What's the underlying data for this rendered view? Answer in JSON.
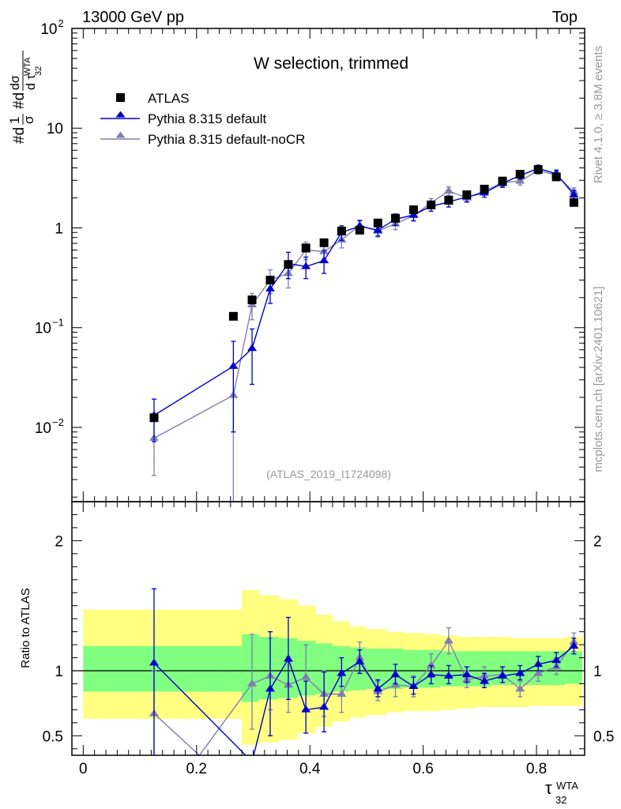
{
  "header": {
    "left": "13000 GeV pp",
    "right": "Top"
  },
  "side_labels": {
    "rivet": "Rivet 4.1.0, ≥ 3.8M events",
    "mcplots": "mcplots.cern.ch [arXiv:2401.10621]"
  },
  "colors": {
    "data": "#000000",
    "default": "#0000cc",
    "noCR": "#7f7fb2",
    "band_outer": "#ffff80",
    "band_inner": "#80ff80"
  },
  "chart_data": [
    {
      "type": "scatter",
      "panel": "main",
      "title": "W selection, trimmed",
      "analysis_tag": "(ATLAS_2019_I1724098)",
      "ylabel": "#d1/σ #d dσ/d τ_32^WTA",
      "ylabel_parts": {
        "top": "#d",
        "one": "1",
        "sigma": "σ",
        "num": "#d",
        "dsig": "dσ",
        "dtau": "d τ",
        "sup": "WTA",
        "sub": "32"
      },
      "yscale": "log",
      "ylim": [
        0.0018,
        100
      ],
      "xlim": [
        -0.02,
        0.885
      ],
      "yticks": [
        {
          "v": 0.01,
          "base": "10",
          "exp": "−2"
        },
        {
          "v": 0.1,
          "base": "10",
          "exp": "−1"
        },
        {
          "v": 1,
          "base": "1",
          "exp": ""
        },
        {
          "v": 10,
          "base": "10",
          "exp": ""
        },
        {
          "v": 100,
          "base": "10",
          "exp": "2"
        }
      ],
      "legend_position": "top-left",
      "series": [
        {
          "name": "ATLAS",
          "marker": "square",
          "color": "#000000",
          "x": [
            0.125,
            0.265,
            0.298,
            0.33,
            0.362,
            0.393,
            0.425,
            0.456,
            0.488,
            0.52,
            0.551,
            0.583,
            0.614,
            0.645,
            0.677,
            0.708,
            0.74,
            0.771,
            0.803,
            0.835,
            0.866
          ],
          "y": [
            0.0125,
            0.13,
            0.19,
            0.3,
            0.43,
            0.63,
            0.71,
            0.93,
            0.95,
            1.12,
            1.25,
            1.52,
            1.7,
            1.9,
            2.15,
            2.45,
            2.95,
            3.45,
            3.85,
            3.25,
            1.8
          ]
        },
        {
          "name": "Pythia 8.315 default",
          "marker": "triangle",
          "color": "#0000cc",
          "x": [
            0.125,
            0.265,
            0.298,
            0.33,
            0.362,
            0.393,
            0.425,
            0.456,
            0.488,
            0.52,
            0.551,
            0.583,
            0.614,
            0.645,
            0.677,
            0.708,
            0.74,
            0.771,
            0.803,
            0.835,
            0.866
          ],
          "y": [
            0.0132,
            0.041,
            0.062,
            0.245,
            0.44,
            0.41,
            0.47,
            0.9,
            1.04,
            0.95,
            1.22,
            1.35,
            1.65,
            1.82,
            2.05,
            2.25,
            2.8,
            3.35,
            3.95,
            3.5,
            2.15
          ],
          "err": [
            0.006,
            0.032,
            0.035,
            0.07,
            0.13,
            0.1,
            0.12,
            0.15,
            0.14,
            0.12,
            0.16,
            0.17,
            0.18,
            0.2,
            0.22,
            0.22,
            0.25,
            0.28,
            0.3,
            0.3,
            0.22
          ]
        },
        {
          "name": "Pythia 8.315 default-noCR",
          "marker": "triangle",
          "color": "#7f7fb2",
          "x": [
            0.125,
            0.265,
            0.298,
            0.33,
            0.362,
            0.393,
            0.425,
            0.456,
            0.488,
            0.52,
            0.551,
            0.583,
            0.614,
            0.645,
            0.677,
            0.708,
            0.74,
            0.771,
            0.803,
            0.835,
            0.866
          ],
          "y": [
            0.0078,
            0.021,
            0.17,
            0.3,
            0.35,
            0.6,
            0.58,
            0.76,
            1.06,
            0.93,
            1.1,
            1.33,
            1.78,
            2.35,
            2.0,
            2.35,
            2.85,
            2.95,
            3.75,
            3.4,
            2.3
          ],
          "err": [
            0.0045,
            0.0195,
            0.05,
            0.08,
            0.1,
            0.12,
            0.12,
            0.13,
            0.14,
            0.12,
            0.14,
            0.16,
            0.19,
            0.23,
            0.2,
            0.22,
            0.25,
            0.26,
            0.3,
            0.3,
            0.22
          ]
        }
      ]
    },
    {
      "type": "scatter",
      "panel": "ratio",
      "ylabel": "Ratio to ATLAS",
      "xlabel_base": "τ",
      "xlabel_sup": "WTA",
      "xlabel_sub": "32",
      "ylim": [
        0.35,
        2.3
      ],
      "xlim": [
        -0.02,
        0.885
      ],
      "xticks": [
        {
          "v": 0,
          "label": "0"
        },
        {
          "v": 0.2,
          "label": "0.2"
        },
        {
          "v": 0.4,
          "label": "0.4"
        },
        {
          "v": 0.6,
          "label": "0.6"
        },
        {
          "v": 0.8,
          "label": "0.8"
        }
      ],
      "yticks": [
        {
          "v": 0.5,
          "label": "0.5"
        },
        {
          "v": 1,
          "label": "1"
        },
        {
          "v": 2,
          "label": "2"
        }
      ],
      "reference_line": 1,
      "bands": {
        "edges": [
          0.0,
          0.25,
          0.28,
          0.31,
          0.345,
          0.378,
          0.41,
          0.44,
          0.47,
          0.5,
          0.535,
          0.565,
          0.6,
          0.63,
          0.66,
          0.69,
          0.72,
          0.755,
          0.787,
          0.82,
          0.85,
          0.88
        ],
        "outer_lo": [
          0.63,
          0.63,
          0.43,
          0.45,
          0.47,
          0.52,
          0.57,
          0.61,
          0.64,
          0.66,
          0.68,
          0.69,
          0.69,
          0.7,
          0.71,
          0.72,
          0.72,
          0.72,
          0.73,
          0.73,
          0.73
        ],
        "outer_hi": [
          1.47,
          1.47,
          1.62,
          1.58,
          1.55,
          1.5,
          1.43,
          1.38,
          1.34,
          1.32,
          1.3,
          1.29,
          1.28,
          1.27,
          1.26,
          1.26,
          1.26,
          1.25,
          1.25,
          1.25,
          1.26
        ],
        "inner_lo": [
          0.84,
          0.84,
          0.76,
          0.78,
          0.79,
          0.81,
          0.82,
          0.84,
          0.85,
          0.86,
          0.86,
          0.87,
          0.87,
          0.88,
          0.88,
          0.88,
          0.89,
          0.89,
          0.89,
          0.89,
          0.9
        ],
        "inner_hi": [
          1.19,
          1.19,
          1.28,
          1.26,
          1.25,
          1.23,
          1.21,
          1.19,
          1.18,
          1.17,
          1.17,
          1.16,
          1.16,
          1.15,
          1.15,
          1.15,
          1.15,
          1.15,
          1.15,
          1.15,
          1.15
        ]
      },
      "series": [
        {
          "name": "Pythia 8.315 default",
          "marker": "triangle",
          "color": "#0000cc",
          "x": [
            0.125,
            0.298,
            0.33,
            0.362,
            0.393,
            0.425,
            0.456,
            0.488,
            0.52,
            0.551,
            0.583,
            0.614,
            0.645,
            0.677,
            0.708,
            0.74,
            0.771,
            0.803,
            0.835,
            0.866
          ],
          "y": [
            1.06,
            0.3,
            0.86,
            1.09,
            0.7,
            0.72,
            0.98,
            1.07,
            0.86,
            0.97,
            0.88,
            0.97,
            0.96,
            0.97,
            0.92,
            0.96,
            0.98,
            1.05,
            1.08,
            1.19
          ],
          "lo": [
            0.3,
            0.3,
            0.5,
            0.78,
            0.52,
            0.53,
            0.88,
            0.98,
            0.8,
            0.9,
            0.82,
            0.9,
            0.9,
            0.91,
            0.87,
            0.91,
            0.93,
            1.0,
            1.03,
            1.13
          ],
          "hi": [
            1.63,
            0.3,
            1.3,
            1.41,
            0.92,
            0.99,
            1.1,
            1.16,
            0.93,
            1.05,
            0.95,
            1.04,
            1.04,
            1.03,
            0.98,
            1.03,
            1.04,
            1.11,
            1.14,
            1.25
          ]
        },
        {
          "name": "Pythia 8.315 default-noCR",
          "marker": "triangle",
          "color": "#7f7fb2",
          "x": [
            0.125,
            0.205,
            0.298,
            0.33,
            0.362,
            0.393,
            0.425,
            0.456,
            0.488,
            0.52,
            0.551,
            0.583,
            0.614,
            0.645,
            0.677,
            0.708,
            0.74,
            0.771,
            0.803,
            0.835,
            0.866
          ],
          "y": [
            0.67,
            0.35,
            0.9,
            0.96,
            0.89,
            0.95,
            0.82,
            0.82,
            1.1,
            0.84,
            0.89,
            0.88,
            1.04,
            1.23,
            0.93,
            0.96,
            0.97,
            0.86,
            0.98,
            1.03,
            1.22
          ],
          "lo": [
            0.35,
            0.35,
            0.55,
            0.7,
            0.68,
            0.7,
            0.65,
            0.68,
            0.98,
            0.77,
            0.8,
            0.8,
            0.95,
            1.13,
            0.87,
            0.9,
            0.91,
            0.8,
            0.92,
            0.97,
            1.15
          ],
          "hi": [
            1.0,
            0.35,
            1.28,
            1.25,
            1.11,
            1.2,
            1.0,
            0.97,
            1.22,
            0.92,
            0.98,
            0.96,
            1.13,
            1.33,
            1.0,
            1.03,
            1.03,
            0.92,
            1.04,
            1.1,
            1.29
          ]
        }
      ]
    }
  ]
}
